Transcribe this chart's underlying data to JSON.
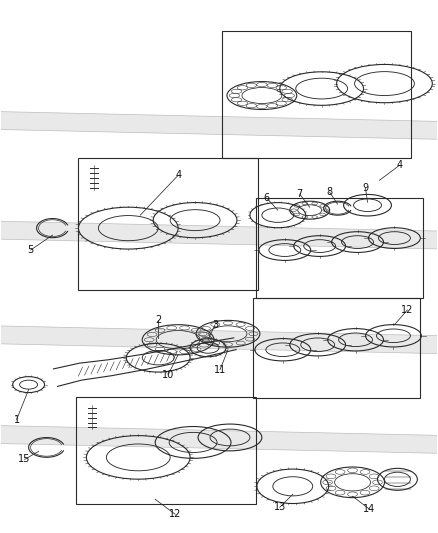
{
  "background_color": "#ffffff",
  "line_color": "#2a2a2a",
  "label_color": "#111111",
  "figsize": [
    4.38,
    5.33
  ],
  "dpi": 100,
  "shaft_band_color": "#cccccc",
  "shaft_band_alpha": 0.45
}
